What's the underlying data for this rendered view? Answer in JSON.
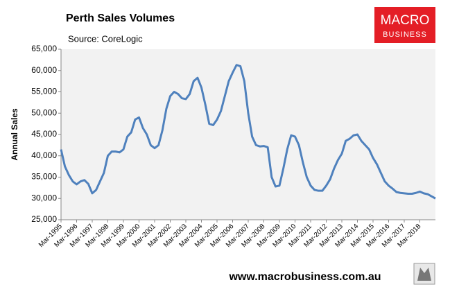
{
  "chart_data": {
    "type": "line",
    "title": "Perth Sales Volumes",
    "subtitle": "Source: CoreLogic",
    "y_label": "Annual Sales",
    "footer": "www.macrobusiness.com.au",
    "logo": [
      "MACRO",
      "BUSINESS"
    ],
    "color": "#4f81bd",
    "categories": [
      "Mar-1995",
      null,
      null,
      null,
      "Mar-1996",
      null,
      null,
      null,
      "Mar-1997",
      null,
      null,
      null,
      "Mar-1998",
      null,
      null,
      null,
      "Mar-1999",
      null,
      null,
      null,
      "Mar-2000",
      null,
      null,
      null,
      "Mar-2001",
      null,
      null,
      null,
      "Mar-2002",
      null,
      null,
      null,
      "Mar-2003",
      null,
      null,
      null,
      "Mar-2004",
      null,
      null,
      null,
      "Mar-2005",
      null,
      null,
      null,
      "Mar-2006",
      null,
      null,
      null,
      "Mar-2007",
      null,
      null,
      null,
      "Mar-2008",
      null,
      null,
      null,
      "Mar-2009",
      null,
      null,
      null,
      "Mar-2010",
      null,
      null,
      null,
      "Mar-2011",
      null,
      null,
      null,
      "Mar-2012",
      null,
      null,
      null,
      "Mar-2013",
      null,
      null,
      null,
      "Mar-2014",
      null,
      null,
      null,
      "Mar-2015",
      null,
      null,
      null,
      "Mar-2016",
      null,
      null,
      null,
      "Mar-2017",
      null,
      null,
      null,
      "Mar-2018",
      null,
      null,
      null,
      null
    ],
    "values": [
      41500,
      37500,
      35500,
      34000,
      33300,
      34000,
      34300,
      33400,
      31200,
      32000,
      34000,
      36000,
      40000,
      41000,
      41000,
      40800,
      41500,
      44500,
      45500,
      48500,
      49000,
      46500,
      45000,
      42500,
      41800,
      42500,
      46000,
      51000,
      54000,
      55000,
      54500,
      53500,
      53300,
      54500,
      57500,
      58300,
      56000,
      52000,
      47500,
      47200,
      48500,
      50500,
      54000,
      57500,
      59500,
      61300,
      61000,
      57500,
      50000,
      44500,
      42500,
      42200,
      42300,
      42000,
      35000,
      32800,
      33000,
      37000,
      41500,
      44800,
      44500,
      42500,
      38500,
      35000,
      33000,
      32000,
      31800,
      31800,
      33000,
      34500,
      37000,
      39000,
      40500,
      43500,
      44000,
      44800,
      45000,
      43500,
      42500,
      41500,
      39500,
      38000,
      36000,
      34000,
      33000,
      32300,
      31500,
      31300,
      31200,
      31100,
      31100,
      31300,
      31600,
      31200,
      31000,
      30500,
      30000
    ],
    "ylim": [
      25000,
      65000
    ],
    "yticks": [
      {
        "value": 25000,
        "label": "25,000"
      },
      {
        "value": 30000,
        "label": "30,000"
      },
      {
        "value": 35000,
        "label": "35,000"
      },
      {
        "value": 40000,
        "label": "40,000"
      },
      {
        "value": 45000,
        "label": "45,000"
      },
      {
        "value": 50000,
        "label": "50,000"
      },
      {
        "value": 55000,
        "label": "55,000"
      },
      {
        "value": 60000,
        "label": "60,000"
      },
      {
        "value": 65000,
        "label": "65,000"
      }
    ],
    "grid": false
  }
}
